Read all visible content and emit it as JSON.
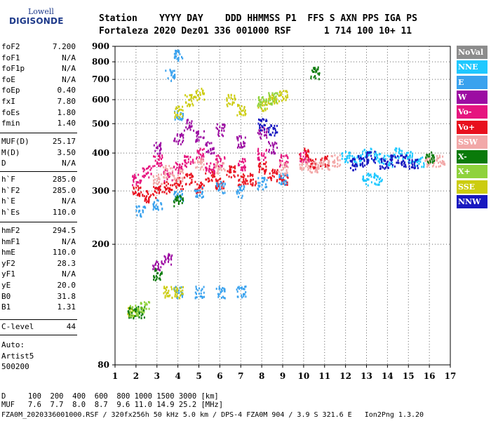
{
  "logo": {
    "line1": "Lowell",
    "line2": "DIGISONDE"
  },
  "header": {
    "labels": "Station    YYYY DAY    DDD HHMMSS P1  FFS S AXN PPS IGA PS",
    "values": "Fortaleza 2020 Dez01 336 001000 RSF      1 714 100 10+ 11"
  },
  "params_group1": [
    {
      "name": "foF2",
      "value": "7.200"
    },
    {
      "name": "foF1",
      "value": "N/A"
    },
    {
      "name": "foF1p",
      "value": "N/A"
    },
    {
      "name": "foE",
      "value": "N/A"
    },
    {
      "name": "foEp",
      "value": "0.40"
    },
    {
      "name": "fxI",
      "value": "7.80"
    },
    {
      "name": "foEs",
      "value": "1.80"
    },
    {
      "name": "fmin",
      "value": "1.40"
    }
  ],
  "params_group2": [
    {
      "name": "MUF(D)",
      "value": "25.17"
    },
    {
      "name": "M(D)",
      "value": "3.50"
    },
    {
      "name": "D",
      "value": "N/A"
    }
  ],
  "params_group3": [
    {
      "name": "h`F",
      "value": "285.0"
    },
    {
      "name": "h`F2",
      "value": "285.0"
    },
    {
      "name": "h`E",
      "value": "N/A"
    },
    {
      "name": "h`Es",
      "value": "110.0"
    }
  ],
  "params_group4": [
    {
      "name": "hmF2",
      "value": "294.5"
    },
    {
      "name": "hmF1",
      "value": "N/A"
    },
    {
      "name": "hmE",
      "value": "110.0"
    },
    {
      "name": "yF2",
      "value": "28.3"
    },
    {
      "name": "yF1",
      "value": "N/A"
    },
    {
      "name": "yE",
      "value": "20.0"
    },
    {
      "name": "B0",
      "value": "31.8"
    },
    {
      "name": "B1",
      "value": "1.31"
    }
  ],
  "params_group5": [
    {
      "name": "C-level",
      "value": "44"
    }
  ],
  "autoscale": {
    "line1": "Auto:",
    "line2": "Artist5",
    "line3": "500200"
  },
  "legend": [
    {
      "label": "NoVal",
      "color": "#8c8c8c"
    },
    {
      "label": "NNE",
      "color": "#1ec8ff"
    },
    {
      "label": "E",
      "color": "#3aa2ee"
    },
    {
      "label": "W",
      "color": "#9c0ca2"
    },
    {
      "label": "Vo-",
      "color": "#e6157f"
    },
    {
      "label": "Vo+",
      "color": "#e8101e"
    },
    {
      "label": "SSW",
      "color": "#f2a8a8"
    },
    {
      "label": "X-",
      "color": "#0a7a0a"
    },
    {
      "label": "X+",
      "color": "#8fd23c"
    },
    {
      "label": "SSE",
      "color": "#cccc10"
    },
    {
      "label": "NNW",
      "color": "#1818c0"
    }
  ],
  "footer": {
    "line1": "D     100  200  400  600  800 1000 1500 3000 [km]",
    "line2": "MUF   7.6  7.7  8.0  8.7  9.6 11.0 14.9 25.2 [MHz]",
    "line3": "FZA0M_2020336001000.RSF / 320fx256h 50 kHz 5.0 km / DPS-4 FZA0M 904 / 3.9 S 321.6 E   Ion2Png 1.3.20"
  },
  "chart_data": {
    "type": "scatter",
    "title": "",
    "xlabel": "",
    "ylabel": "",
    "xlim": [
      1,
      17
    ],
    "ylim": [
      80,
      900
    ],
    "y_scale": "log",
    "x_ticks": [
      1,
      2,
      3,
      4,
      5,
      6,
      7,
      8,
      9,
      10,
      11,
      12,
      13,
      14,
      15,
      16,
      17
    ],
    "y_ticks": [
      80,
      200,
      300,
      400,
      500,
      600,
      700,
      800,
      900
    ],
    "grid": true,
    "legend_position": "right",
    "series": [
      {
        "color": "#e8101e",
        "points": [
          [
            2.0,
            300
          ],
          [
            2.5,
            290
          ],
          [
            3.0,
            300
          ],
          [
            3.5,
            310
          ],
          [
            4.0,
            320
          ],
          [
            4.5,
            330
          ],
          [
            5.0,
            310
          ],
          [
            5.5,
            340
          ],
          [
            6.0,
            320
          ],
          [
            6.5,
            350
          ],
          [
            7.0,
            330
          ],
          [
            7.5,
            330
          ],
          [
            8.0,
            360
          ],
          [
            8.5,
            340
          ],
          [
            9.0,
            330
          ],
          [
            10.0,
            400
          ],
          [
            10.5,
            370
          ],
          [
            11.0,
            380
          ]
        ]
      },
      {
        "color": "#e6157f",
        "points": [
          [
            2.0,
            330
          ],
          [
            2.5,
            350
          ],
          [
            3.0,
            380
          ],
          [
            3.5,
            340
          ],
          [
            4.0,
            360
          ],
          [
            4.5,
            380
          ],
          [
            5.0,
            400
          ],
          [
            5.5,
            360
          ],
          [
            6.0,
            380
          ],
          [
            7.0,
            370
          ],
          [
            8.0,
            400
          ],
          [
            9.0,
            380
          ],
          [
            10.0,
            390
          ]
        ]
      },
      {
        "color": "#9c0ca2",
        "points": [
          [
            3.0,
            420
          ],
          [
            4.0,
            450
          ],
          [
            4.5,
            500
          ],
          [
            5.0,
            460
          ],
          [
            5.5,
            420
          ],
          [
            6.0,
            480
          ],
          [
            7.0,
            440
          ],
          [
            8.0,
            470
          ],
          [
            8.5,
            420
          ],
          [
            3.0,
            170
          ],
          [
            3.5,
            180
          ]
        ]
      },
      {
        "color": "#3aa2ee",
        "points": [
          [
            2.2,
            260
          ],
          [
            3.0,
            270
          ],
          [
            4.0,
            290
          ],
          [
            5.0,
            300
          ],
          [
            6.0,
            310
          ],
          [
            7.0,
            300
          ],
          [
            8.0,
            320
          ],
          [
            9.0,
            330
          ],
          [
            4.0,
            140
          ],
          [
            5.0,
            140
          ],
          [
            6.0,
            140
          ],
          [
            7.0,
            140
          ],
          [
            4.0,
            840
          ],
          [
            3.6,
            730
          ],
          [
            4.0,
            540
          ]
        ]
      },
      {
        "color": "#1ec8ff",
        "points": [
          [
            12.0,
            390
          ],
          [
            12.5,
            380
          ],
          [
            13.0,
            400
          ],
          [
            13.5,
            390
          ],
          [
            14.0,
            380
          ],
          [
            14.5,
            400
          ],
          [
            15.0,
            390
          ],
          [
            15.5,
            380
          ],
          [
            13.0,
            330
          ],
          [
            13.5,
            330
          ]
        ]
      },
      {
        "color": "#1818c0",
        "points": [
          [
            12.3,
            370
          ],
          [
            12.8,
            380
          ],
          [
            13.2,
            390
          ],
          [
            13.8,
            370
          ],
          [
            14.3,
            380
          ],
          [
            14.8,
            380
          ],
          [
            15.2,
            370
          ],
          [
            8.0,
            500
          ],
          [
            8.5,
            480
          ]
        ]
      },
      {
        "color": "#cccc10",
        "points": [
          [
            4.0,
            550
          ],
          [
            4.5,
            600
          ],
          [
            5.0,
            630
          ],
          [
            6.5,
            600
          ],
          [
            7.0,
            560
          ],
          [
            8.0,
            580
          ],
          [
            8.5,
            600
          ],
          [
            9.0,
            620
          ],
          [
            3.5,
            140
          ],
          [
            4.0,
            140
          ],
          [
            1.8,
            120
          ]
        ]
      },
      {
        "color": "#f2a8a8",
        "points": [
          [
            3.0,
            330
          ],
          [
            3.5,
            350
          ],
          [
            4.0,
            340
          ],
          [
            5.0,
            370
          ],
          [
            6.0,
            360
          ],
          [
            9.0,
            360
          ],
          [
            10.0,
            370
          ],
          [
            10.5,
            360
          ],
          [
            11.0,
            370
          ],
          [
            11.5,
            380
          ],
          [
            16.0,
            380
          ],
          [
            16.5,
            380
          ]
        ]
      },
      {
        "color": "#0a7a0a",
        "points": [
          [
            1.8,
            120
          ],
          [
            2.2,
            120
          ],
          [
            3.0,
            160
          ],
          [
            4.0,
            280
          ],
          [
            10.5,
            740
          ],
          [
            16.0,
            390
          ]
        ]
      },
      {
        "color": "#8fd23c",
        "points": [
          [
            1.9,
            122
          ],
          [
            2.4,
            125
          ],
          [
            8.0,
            590
          ],
          [
            8.5,
            610
          ]
        ]
      }
    ]
  }
}
